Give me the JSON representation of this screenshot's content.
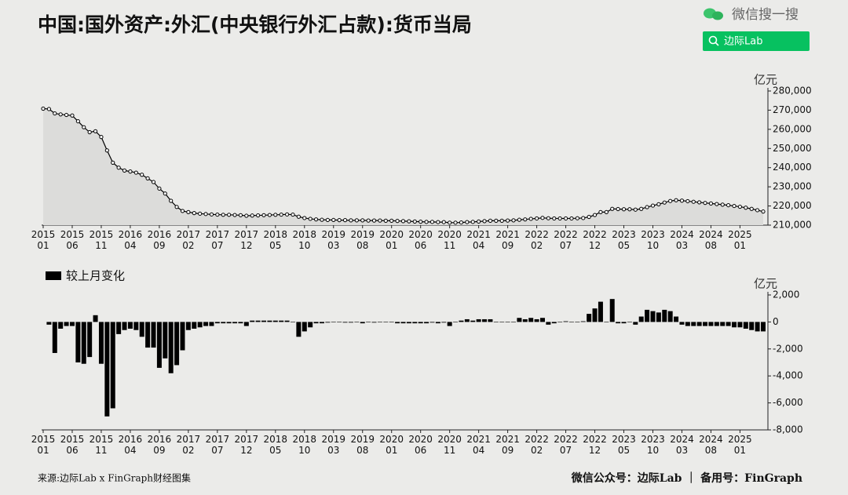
{
  "header": {
    "title": "中国:国外资产:外汇(中央银行外汇占款):货币当局",
    "watermark": "微信搜一搜",
    "search": "边际Lab"
  },
  "footer": {
    "source": "来源:边际Lab x FinGraph财经图集",
    "account": "微信公众号：边际Lab ｜ 备用号：FinGraph"
  },
  "chart_data": [
    {
      "type": "area",
      "y_unit": "亿元",
      "color": "#000000",
      "fill_color": "#dcdcda",
      "categories": [
        [
          "2015",
          "01"
        ],
        null,
        null,
        null,
        null,
        [
          "2015",
          "06"
        ],
        null,
        null,
        null,
        null,
        [
          "2015",
          "11"
        ],
        null,
        null,
        null,
        null,
        [
          "2016",
          "04"
        ],
        null,
        null,
        null,
        null,
        [
          "2016",
          "09"
        ],
        null,
        null,
        null,
        null,
        [
          "2017",
          "02"
        ],
        null,
        null,
        null,
        null,
        [
          "2017",
          "07"
        ],
        null,
        null,
        null,
        null,
        [
          "2017",
          "12"
        ],
        null,
        null,
        null,
        null,
        [
          "2018",
          "05"
        ],
        null,
        null,
        null,
        null,
        [
          "2018",
          "10"
        ],
        null,
        null,
        null,
        null,
        [
          "2019",
          "03"
        ],
        null,
        null,
        null,
        null,
        [
          "2019",
          "08"
        ],
        null,
        null,
        null,
        null,
        [
          "2020",
          "01"
        ],
        null,
        null,
        null,
        null,
        [
          "2020",
          "06"
        ],
        null,
        null,
        null,
        null,
        [
          "2020",
          "11"
        ],
        null,
        null,
        null,
        null,
        [
          "2021",
          "04"
        ],
        null,
        null,
        null,
        null,
        [
          "2021",
          "09"
        ],
        null,
        null,
        null,
        null,
        [
          "2022",
          "02"
        ],
        null,
        null,
        null,
        null,
        [
          "2022",
          "07"
        ],
        null,
        null,
        null,
        null,
        [
          "2022",
          "12"
        ],
        null,
        null,
        null,
        null,
        [
          "2023",
          "05"
        ],
        null,
        null,
        null,
        null,
        [
          "2023",
          "10"
        ],
        null,
        null,
        null,
        null,
        [
          "2024",
          "03"
        ],
        null,
        null,
        null,
        null,
        [
          "2024",
          "08"
        ],
        null,
        null,
        null,
        null,
        [
          "2025",
          "01"
        ],
        null,
        null,
        null,
        null
      ],
      "values": [
        270800,
        270600,
        268300,
        267800,
        267500,
        267200,
        264200,
        261100,
        258500,
        259000,
        256000,
        249000,
        242600,
        240000,
        238500,
        238000,
        237400,
        236300,
        234400,
        232500,
        229100,
        226500,
        222700,
        219500,
        217400,
        216800,
        216300,
        216000,
        215800,
        215600,
        215500,
        215400,
        215400,
        215300,
        215200,
        214900,
        215000,
        215100,
        215200,
        215300,
        215400,
        215500,
        215600,
        215500,
        214400,
        213700,
        213300,
        213000,
        212800,
        212700,
        212700,
        212600,
        212600,
        212500,
        212500,
        212500,
        212400,
        212400,
        212400,
        212300,
        212300,
        212200,
        212100,
        212000,
        211900,
        211800,
        211700,
        211700,
        211600,
        211600,
        211300,
        211300,
        211400,
        211600,
        211700,
        211900,
        212100,
        212300,
        212300,
        212300,
        212400,
        212500,
        212800,
        213000,
        213300,
        213500,
        213800,
        213600,
        213500,
        213500,
        213500,
        213500,
        213600,
        213700,
        214300,
        215300,
        216800,
        216800,
        218500,
        218400,
        218300,
        218300,
        218100,
        218500,
        219400,
        220200,
        220900,
        221800,
        222600,
        223000,
        222800,
        222500,
        222200,
        221900,
        221600,
        221300,
        221000,
        220700,
        220400,
        220000,
        219600,
        219100,
        218500,
        217800,
        217100
      ],
      "ylim": [
        210000,
        280000
      ],
      "yticks": [
        {
          "value": 210000,
          "label": "210,000"
        },
        {
          "value": 220000,
          "label": "220,000"
        },
        {
          "value": 230000,
          "label": "230,000"
        },
        {
          "value": 240000,
          "label": "240,000"
        },
        {
          "value": 250000,
          "label": "250,000"
        },
        {
          "value": 260000,
          "label": "260,000"
        },
        {
          "value": 270000,
          "label": "270,000"
        },
        {
          "value": 280000,
          "label": "280,000"
        }
      ]
    },
    {
      "type": "bar",
      "y_unit": "亿元",
      "categories": [
        [
          "2015",
          "01"
        ],
        null,
        null,
        null,
        null,
        [
          "2015",
          "06"
        ],
        null,
        null,
        null,
        null,
        [
          "2015",
          "11"
        ],
        null,
        null,
        null,
        null,
        [
          "2016",
          "04"
        ],
        null,
        null,
        null,
        null,
        [
          "2016",
          "09"
        ],
        null,
        null,
        null,
        null,
        [
          "2017",
          "02"
        ],
        null,
        null,
        null,
        null,
        [
          "2017",
          "07"
        ],
        null,
        null,
        null,
        null,
        [
          "2017",
          "12"
        ],
        null,
        null,
        null,
        null,
        [
          "2018",
          "05"
        ],
        null,
        null,
        null,
        null,
        [
          "2018",
          "10"
        ],
        null,
        null,
        null,
        null,
        [
          "2019",
          "03"
        ],
        null,
        null,
        null,
        null,
        [
          "2019",
          "08"
        ],
        null,
        null,
        null,
        null,
        [
          "2020",
          "01"
        ],
        null,
        null,
        null,
        null,
        [
          "2020",
          "06"
        ],
        null,
        null,
        null,
        null,
        [
          "2020",
          "11"
        ],
        null,
        null,
        null,
        null,
        [
          "2021",
          "04"
        ],
        null,
        null,
        null,
        null,
        [
          "2021",
          "09"
        ],
        null,
        null,
        null,
        null,
        [
          "2022",
          "02"
        ],
        null,
        null,
        null,
        null,
        [
          "2022",
          "07"
        ],
        null,
        null,
        null,
        null,
        [
          "2022",
          "12"
        ],
        null,
        null,
        null,
        null,
        [
          "2023",
          "05"
        ],
        null,
        null,
        null,
        null,
        [
          "2023",
          "10"
        ],
        null,
        null,
        null,
        null,
        [
          "2024",
          "03"
        ],
        null,
        null,
        null,
        null,
        [
          "2024",
          "08"
        ],
        null,
        null,
        null,
        null,
        [
          "2025",
          "01"
        ],
        null,
        null,
        null,
        null
      ],
      "series": [
        {
          "name": "较上月变化",
          "color": "#000000",
          "values": [
            null,
            -200,
            -2300,
            -500,
            -300,
            -300,
            -3000,
            -3100,
            -2600,
            500,
            -3100,
            -7000,
            -6400,
            -900,
            -600,
            -500,
            -600,
            -1100,
            -1900,
            -1900,
            -3400,
            -2700,
            -3800,
            -3200,
            -2100,
            -600,
            -500,
            -400,
            -300,
            -300,
            -100,
            -100,
            -100,
            -100,
            -100,
            -300,
            100,
            100,
            100,
            100,
            100,
            100,
            100,
            0,
            -1100,
            -700,
            -400,
            -100,
            -100,
            -50,
            0,
            0,
            -50,
            -50,
            0,
            -100,
            0,
            -50,
            0,
            0,
            0,
            -100,
            -100,
            -100,
            -100,
            -100,
            -100,
            -50,
            -100,
            -50,
            -300,
            0,
            100,
            200,
            100,
            200,
            200,
            200,
            0,
            0,
            0,
            0,
            300,
            200,
            300,
            200,
            300,
            -200,
            -100,
            0,
            50,
            0,
            0,
            50,
            600,
            1000,
            1500,
            0,
            1700,
            -100,
            -100,
            0,
            -200,
            400,
            900,
            800,
            700,
            900,
            800,
            400,
            -200,
            -300,
            -300,
            -300,
            -300,
            -300,
            -300,
            -300,
            -300,
            -400,
            -400,
            -500,
            -600,
            -700,
            -700
          ]
        }
      ],
      "ylim": [
        -8000,
        2000
      ],
      "yticks": [
        {
          "value": -8000,
          "label": "-8,000"
        },
        {
          "value": -6000,
          "label": "-6,000"
        },
        {
          "value": -4000,
          "label": "-4,000"
        },
        {
          "value": -2000,
          "label": "-2,000"
        },
        0,
        {
          "value": 2000,
          "label": "2,000"
        }
      ]
    }
  ]
}
